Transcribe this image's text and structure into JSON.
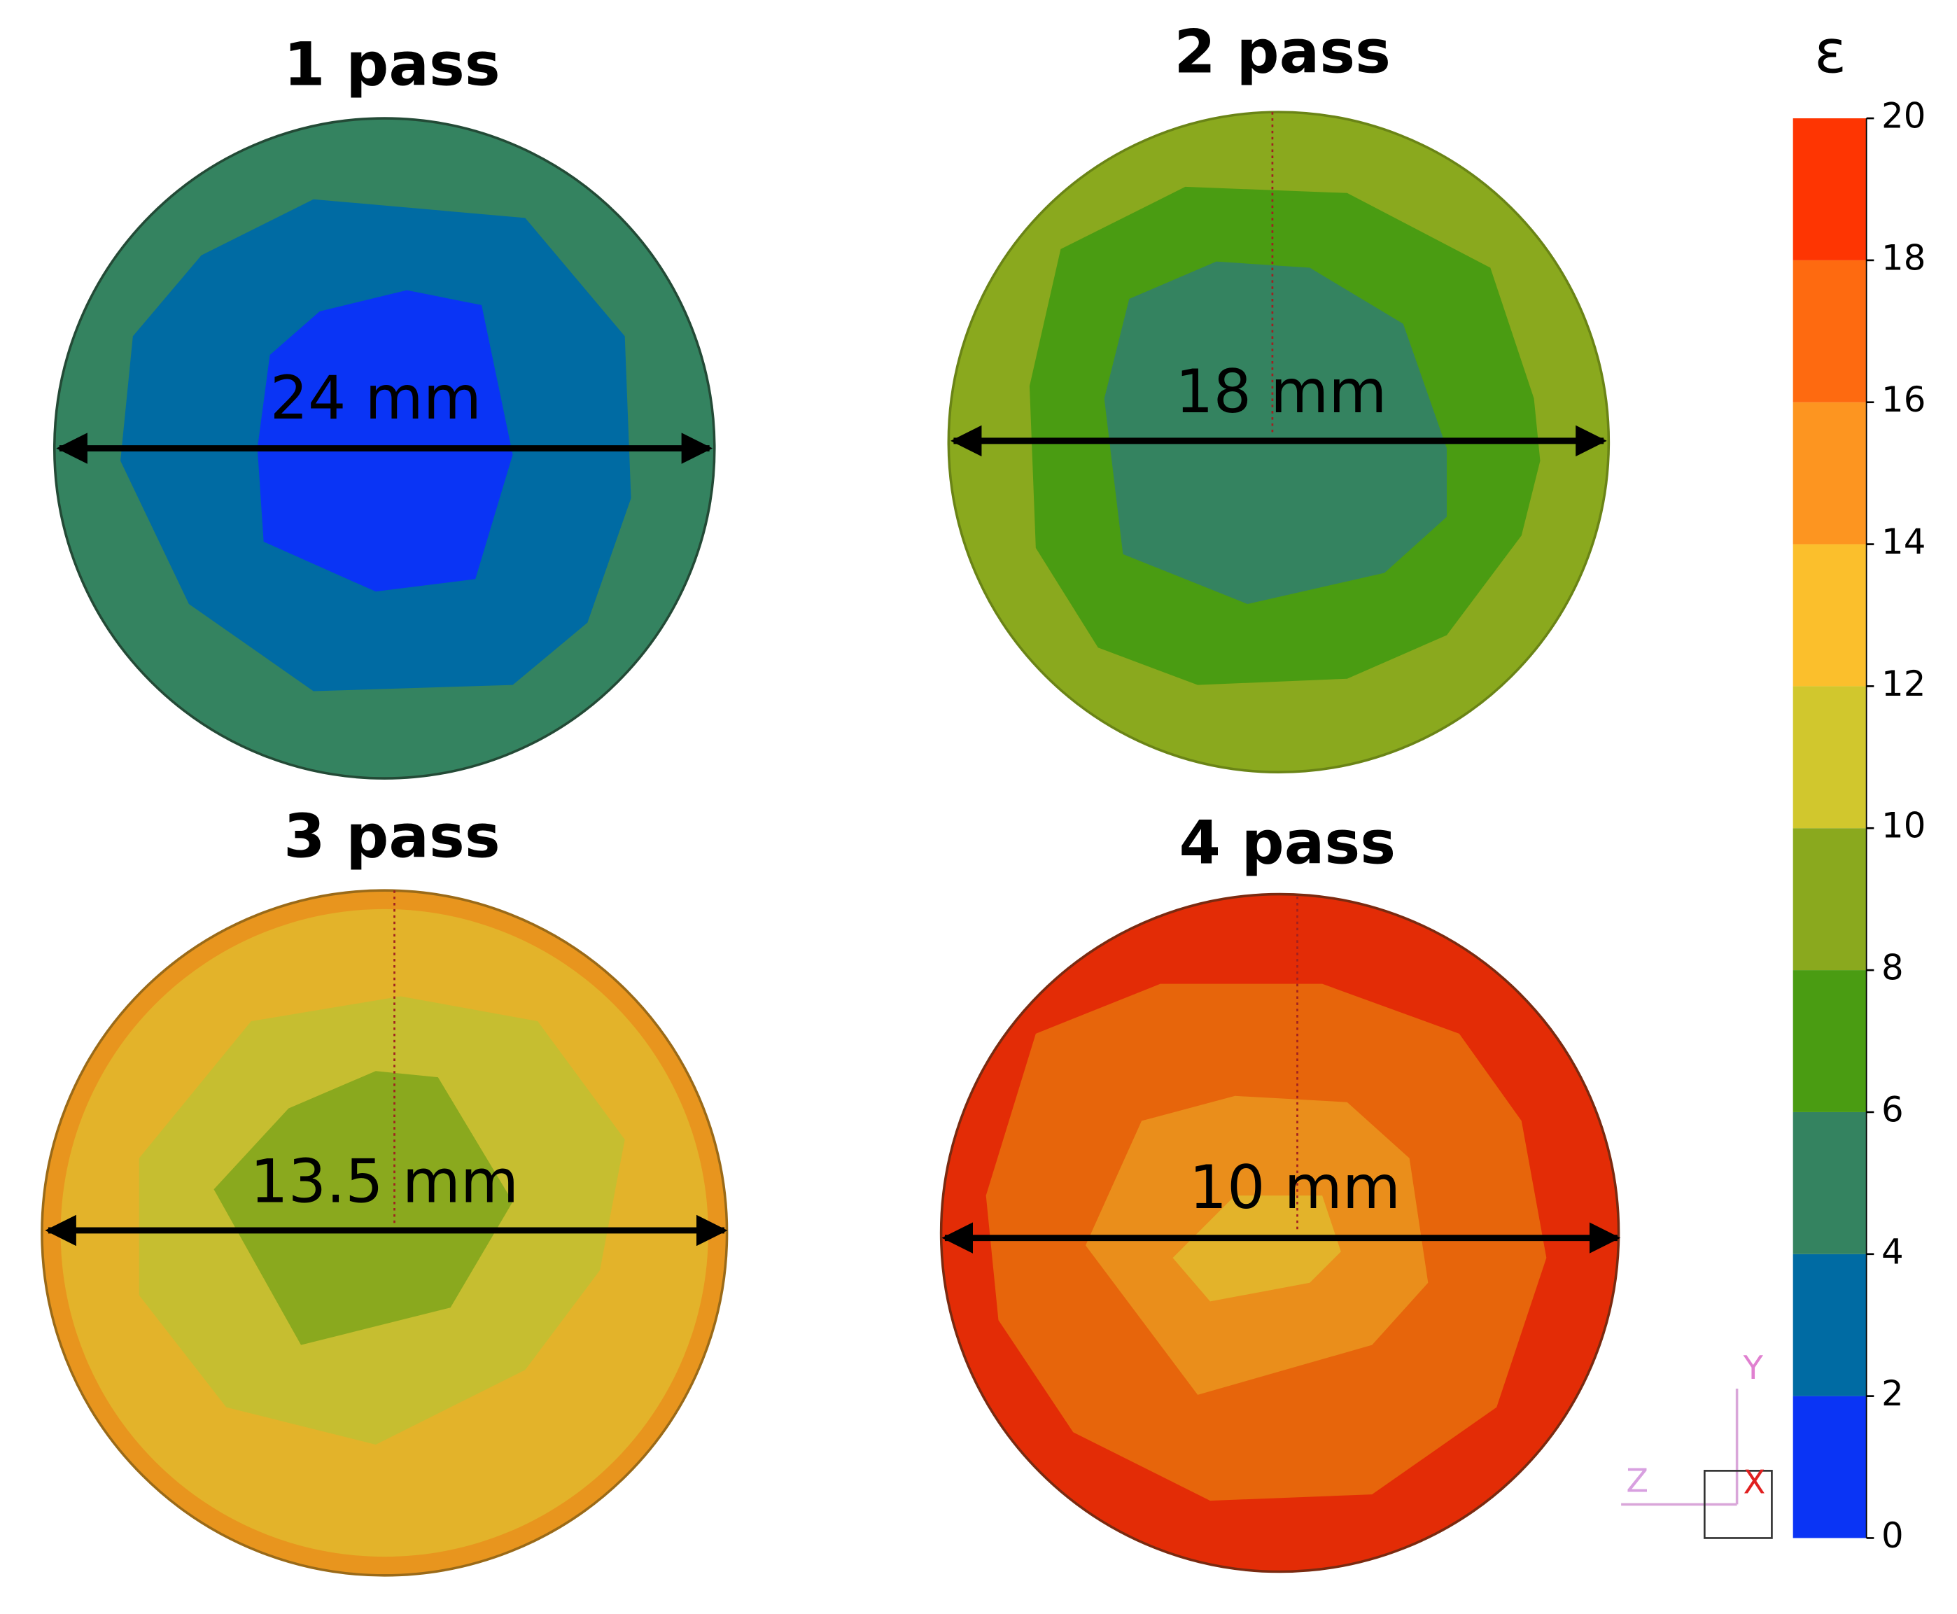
{
  "panels": [
    {
      "title": "1 pass",
      "diameter_label": "24 mm"
    },
    {
      "title": "2 pass",
      "diameter_label": "18 mm"
    },
    {
      "title": "3 pass",
      "diameter_label": "13.5 mm"
    },
    {
      "title": "4 pass",
      "diameter_label": "10 mm"
    }
  ],
  "colorbar": {
    "label": "ε",
    "ticks": [
      0,
      2,
      4,
      6,
      8,
      10,
      12,
      14,
      16,
      18,
      20
    ],
    "colors": [
      "#0a34f5",
      "#006ba3",
      "#348360",
      "#4a9c12",
      "#8aa91e",
      "#d1c72d",
      "#fbbf2c",
      "#fd9520",
      "#fe6a10",
      "#fe3502"
    ]
  },
  "triad": {
    "y": "Y",
    "z": "Z",
    "x": "X"
  }
}
